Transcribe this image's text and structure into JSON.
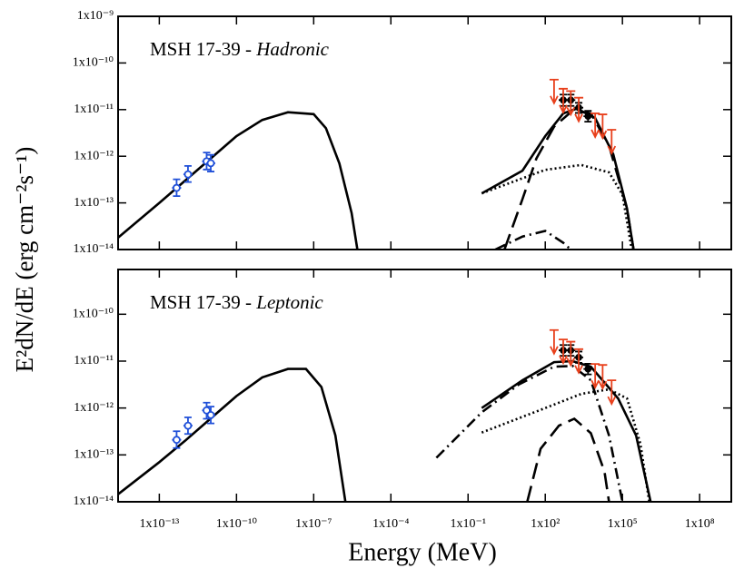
{
  "chart_data": [
    {
      "type": "line",
      "xscale": "log",
      "yscale": "log",
      "label": "MSH 17-39 - ",
      "model": "Hadronic",
      "ylabel": "E²dN/dE (erg cm⁻²s⁻¹)",
      "xlim": [
        2.5e-15,
        1700000000.0
      ],
      "ylim": [
        1e-14,
        1e-09
      ],
      "xticks": [
        1e-13,
        1e-10,
        1e-07,
        0.0001,
        0.1,
        100.0,
        100000.0,
        100000000.0
      ],
      "yticks": [
        {
          "value": 1e-14,
          "label": "1x10⁻¹⁴"
        },
        {
          "value": 1e-13,
          "label": "1x10⁻¹³"
        },
        {
          "value": 1e-12,
          "label": "1x10⁻¹²"
        },
        {
          "value": 1e-11,
          "label": "1x10⁻¹¹"
        },
        {
          "value": 1e-10,
          "label": "1x10⁻¹⁰"
        },
        {
          "value": 1e-09,
          "label": "1x10⁻⁹"
        }
      ],
      "series": [
        {
          "style": "solid",
          "color": "#000000",
          "x": [
            2.5e-15,
            1e-13,
            1e-12,
            1e-11,
            1e-10,
            1e-09,
            1e-08,
            1e-07,
            3e-07,
            1e-06,
            3e-06,
            5e-06
          ],
          "y": [
            1.8e-14,
            1e-13,
            3e-13,
            9e-13,
            2.7e-12,
            6e-12,
            8.8e-12,
            8e-12,
            4e-12,
            7e-13,
            6e-14,
            1e-14
          ]
        },
        {
          "style": "solid",
          "color": "#000000",
          "x": [
            0.34,
            13,
            100,
            500,
            1700,
            8700,
            44000,
            150000,
            270000
          ],
          "y": [
            1.6e-13,
            4.9e-13,
            2.7e-12,
            8.3e-12,
            1.05e-11,
            6.6e-12,
            1.1e-12,
            7.6e-14,
            1e-14
          ]
        },
        {
          "style": "dotted",
          "color": "#000000",
          "x": [
            0.34,
            100,
            2500,
            30000,
            100000,
            230000
          ],
          "y": [
            1.6e-13,
            5.1e-13,
            6.5e-13,
            4.5e-13,
            1.5e-13,
            1e-14
          ]
        },
        {
          "style": "dashed",
          "color": "#000000",
          "x": [
            2.6,
            13,
            45,
            220,
            1150,
            5900,
            30000,
            150000,
            270000
          ],
          "y": [
            1e-14,
            1.2e-13,
            8.9e-13,
            4.3e-12,
            9.5e-12,
            8.3e-12,
            1.7e-12,
            7.6e-14,
            1e-14
          ]
        },
        {
          "style": "dashdot",
          "color": "#000000",
          "x": [
            1.15,
            13,
            100,
            500,
            980
          ],
          "y": [
            1e-14,
            1.9e-14,
            2.5e-14,
            1.4e-14,
            1e-14
          ]
        }
      ],
      "points": [
        {
          "color": "#1f4fd8",
          "marker": "open",
          "x": [
            4.7e-13,
            1.3e-12,
            6.9e-12,
            1e-11
          ],
          "values": [
            2.1e-13,
            4.1e-13,
            7.8e-13,
            7.1e-13
          ],
          "lower": [
            1.4e-13,
            2.8e-13,
            5.2e-13,
            4.7e-13
          ],
          "upper": [
            3.2e-13,
            6.2e-13,
            1.2e-12,
            1.07e-12
          ]
        },
        {
          "color": "#000000",
          "marker": "filled",
          "x": [
            500,
            980,
            2000,
            4600
          ],
          "values": [
            1.6e-11,
            1.6e-11,
            1.1e-11,
            7.2e-12
          ],
          "lower": [
            1.2e-11,
            1.2e-11,
            8.5e-12,
            5.5e-12
          ],
          "upper": [
            2.1e-11,
            2.1e-11,
            1.4e-11,
            9.4e-12
          ]
        }
      ],
      "upper_limits": {
        "color": "#e8401c",
        "x": [
          220,
          500,
          980,
          2000,
          8700,
          17000,
          38000
        ],
        "values": [
          4.4e-11,
          2.8e-11,
          2.5e-11,
          1.8e-11,
          8.3e-12,
          7.9e-12,
          3.7e-12
        ]
      }
    },
    {
      "type": "line",
      "xscale": "log",
      "yscale": "log",
      "label": "MSH 17-39 - ",
      "model": "Leptonic",
      "xlabel": "Energy (MeV)",
      "xlim": [
        2.5e-15,
        1700000000.0
      ],
      "ylim": [
        1e-14,
        9e-10
      ],
      "xticks": [
        {
          "value": 1e-13,
          "label": "1x10⁻¹³"
        },
        {
          "value": 1e-10,
          "label": "1x10⁻¹⁰"
        },
        {
          "value": 1e-07,
          "label": "1x10⁻⁷"
        },
        {
          "value": 0.0001,
          "label": "1x10⁻⁴"
        },
        {
          "value": 0.1,
          "label": "1x10⁻¹"
        },
        {
          "value": 100.0,
          "label": "1x10²"
        },
        {
          "value": 100000.0,
          "label": "1x10⁵"
        },
        {
          "value": 100000000.0,
          "label": "1x10⁸"
        }
      ],
      "yticks": [
        {
          "value": 1e-14,
          "label": "1x10⁻¹⁴"
        },
        {
          "value": 1e-13,
          "label": "1x10⁻¹³"
        },
        {
          "value": 1e-12,
          "label": "1x10⁻¹²"
        },
        {
          "value": 1e-11,
          "label": "1x10⁻¹¹"
        },
        {
          "value": 1e-10,
          "label": "1x10⁻¹⁰"
        }
      ],
      "series": [
        {
          "style": "solid",
          "color": "#000000",
          "x": [
            2.5e-15,
            1e-13,
            1e-12,
            1e-11,
            1e-10,
            1e-09,
            1e-08,
            5e-08,
            2e-07,
            7e-07,
            1.7e-06
          ],
          "y": [
            1.45e-14,
            7e-14,
            2e-13,
            6e-13,
            1.8e-12,
            4.5e-12,
            6.8e-12,
            6.8e-12,
            2.8e-12,
            2.6e-13,
            1e-14
          ]
        },
        {
          "style": "solid",
          "color": "#000000",
          "x": [
            0.34,
            13,
            220,
            1150,
            5900,
            68000,
            340000,
            1250000
          ],
          "y": [
            1e-12,
            3.9e-12,
            9.5e-12,
            1e-11,
            7.6e-12,
            1.6e-12,
            2.6e-13,
            1e-14
          ]
        },
        {
          "style": "dashdot",
          "color": "#000000",
          "x": [
            0.0059,
            0.34,
            9.5,
            220,
            1150,
            5900,
            30000,
            100000
          ],
          "y": [
            8.7e-14,
            8.1e-13,
            3.2e-12,
            7.6e-12,
            7.9e-12,
            3.9e-12,
            2.6e-13,
            1e-14
          ]
        },
        {
          "style": "dotted",
          "color": "#000000",
          "x": [
            0.34,
            100,
            2500,
            30000,
            150000,
            500000,
            1100000
          ],
          "y": [
            3e-13,
            1e-12,
            2e-12,
            2.5e-12,
            1.6e-12,
            1.7e-13,
            1e-14
          ]
        },
        {
          "style": "dashed",
          "color": "#000000",
          "x": [
            20,
            66,
            340,
            1350,
            5900,
            20000,
            30000
          ],
          "y": [
            1e-14,
            1.35e-13,
            4.2e-13,
            5.9e-13,
            2.9e-13,
            4.4e-14,
            1e-14
          ]
        }
      ],
      "points": [
        {
          "color": "#1f4fd8",
          "marker": "open",
          "x": [
            4.7e-13,
            1.3e-12,
            6.9e-12,
            1e-11
          ],
          "values": [
            2.1e-13,
            4.2e-13,
            8.9e-13,
            7.1e-13
          ],
          "lower": [
            1.4e-13,
            2.8e-13,
            5.9e-13,
            4.7e-13
          ],
          "upper": [
            3.2e-13,
            6.3e-13,
            1.3e-12,
            1.07e-12
          ]
        },
        {
          "color": "#000000",
          "marker": "filled",
          "x": [
            500,
            980,
            2000,
            4600
          ],
          "values": [
            1.7e-11,
            1.7e-11,
            1.2e-11,
            6.8e-12
          ],
          "lower": [
            1.3e-11,
            1.3e-11,
            9.2e-12,
            5.2e-12
          ],
          "upper": [
            2.2e-11,
            2.2e-11,
            1.6e-11,
            8.8e-12
          ]
        }
      ],
      "upper_limits": {
        "color": "#e8401c",
        "x": [
          220,
          500,
          980,
          2000,
          8700,
          17000,
          38000
        ],
        "values": [
          4.6e-11,
          2.9e-11,
          2.6e-11,
          1.8e-11,
          8.7e-12,
          8.3e-12,
          3.9e-12
        ]
      }
    }
  ]
}
